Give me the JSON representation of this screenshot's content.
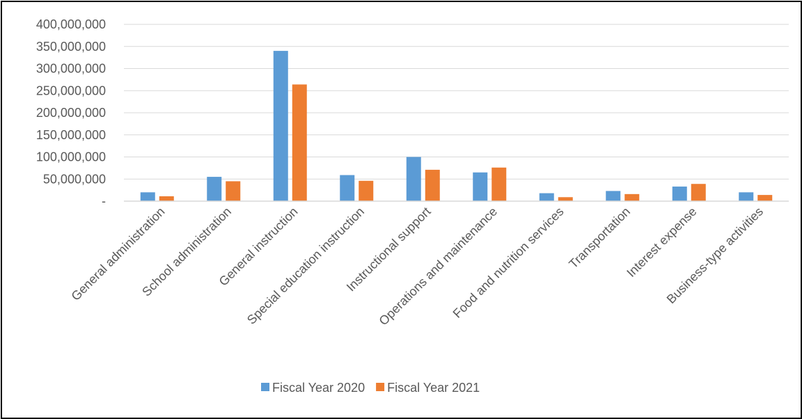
{
  "chart_data": {
    "type": "bar",
    "title": "",
    "xlabel": "",
    "ylabel": "",
    "ylim": [
      0,
      400000000
    ],
    "y_tick_values": [
      0,
      50000000,
      100000000,
      150000000,
      200000000,
      250000000,
      300000000,
      350000000,
      400000000
    ],
    "y_tick_labels": [
      "-",
      "50,000,000",
      "100,000,000",
      "150,000,000",
      "200,000,000",
      "250,000,000",
      "300,000,000",
      "350,000,000",
      "400,000,000"
    ],
    "grid": true,
    "legend_position": "bottom",
    "categories": [
      "General administration",
      "School administration",
      "General instruction",
      "Special education instruction",
      "Instructional support",
      "Operations and maintenance",
      "Food and nutrition services",
      "Transportation",
      "Interest expense",
      "Business-type activities"
    ],
    "series": [
      {
        "name": "Fiscal Year 2020",
        "color": "#5B9BD5",
        "values": [
          20000000,
          55000000,
          340000000,
          59000000,
          100000000,
          65000000,
          18000000,
          23000000,
          33000000,
          20000000
        ]
      },
      {
        "name": "Fiscal Year 2021",
        "color": "#ED7D31",
        "values": [
          11000000,
          45000000,
          264000000,
          46000000,
          71000000,
          76000000,
          9000000,
          16000000,
          39000000,
          14000000
        ]
      }
    ]
  }
}
